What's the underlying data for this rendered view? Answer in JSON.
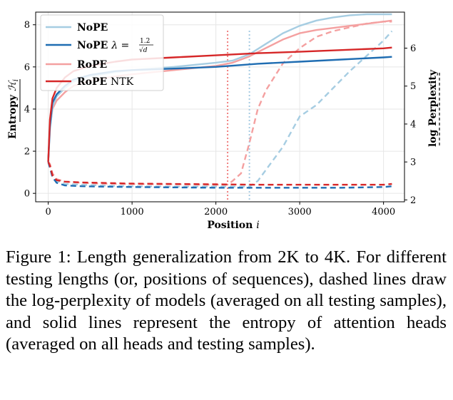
{
  "chart_data": {
    "type": "line",
    "xlabel": "Position i",
    "ylabel_left": "Entropy H_i",
    "ylabel_right": "log Perplexity",
    "xlim": [
      -150,
      4250
    ],
    "ylim_left": [
      -0.4,
      8.6
    ],
    "ylim_right": [
      1.95,
      6.95
    ],
    "x_ticks": [
      0,
      1000,
      2000,
      3000,
      4000
    ],
    "y_left_ticks": [
      0,
      2,
      4,
      6,
      8
    ],
    "y_right_ticks": [
      2,
      3,
      4,
      5,
      6
    ],
    "grid": true,
    "legend_position": "top-left",
    "legend": [
      {
        "name": "NoPE",
        "sub": ""
      },
      {
        "name": "NoPE",
        "sub": "λ = 1.2/√d"
      },
      {
        "name": "RoPE",
        "sub": ""
      },
      {
        "name": "RoPE",
        "sub": "NTK"
      }
    ],
    "vlines": [
      {
        "x": 2140,
        "color": "#f08080"
      },
      {
        "x": 2400,
        "color": "#a6cbe3"
      }
    ],
    "series": [
      {
        "name": "NoPE",
        "style": "solid",
        "axis": "left",
        "color": "#a6cde2",
        "x": [
          0,
          20,
          50,
          100,
          200,
          300,
          500,
          800,
          1000,
          1500,
          2000,
          2200,
          2400,
          2600,
          2800,
          3000,
          3200,
          3400,
          3600,
          3800,
          4000,
          4100
        ],
        "y": [
          1.5,
          3.0,
          4.1,
          4.6,
          5.0,
          5.3,
          5.55,
          5.75,
          5.85,
          6.0,
          6.2,
          6.3,
          6.6,
          7.1,
          7.6,
          7.95,
          8.2,
          8.35,
          8.45,
          8.5,
          8.5,
          8.5
        ]
      },
      {
        "name": "NoPE λ = 1.2/√d",
        "style": "solid",
        "axis": "left",
        "color": "#1f6db2",
        "x": [
          0,
          20,
          50,
          100,
          200,
          300,
          500,
          800,
          1000,
          1500,
          2000,
          2500,
          3000,
          3500,
          4000,
          4100
        ],
        "y": [
          1.5,
          3.2,
          4.3,
          4.7,
          5.1,
          5.4,
          5.62,
          5.8,
          5.85,
          5.92,
          6.0,
          6.15,
          6.25,
          6.35,
          6.45,
          6.48
        ]
      },
      {
        "name": "RoPE",
        "style": "solid",
        "axis": "left",
        "color": "#f4a0a0",
        "x": [
          0,
          20,
          50,
          100,
          200,
          300,
          500,
          800,
          1000,
          1500,
          2000,
          2200,
          2400,
          2600,
          2800,
          3000,
          3200,
          3400,
          3600,
          3800,
          4000,
          4100
        ],
        "y": [
          1.5,
          3.1,
          4.0,
          4.4,
          4.8,
          5.1,
          5.35,
          5.55,
          5.65,
          5.85,
          6.05,
          6.2,
          6.5,
          6.9,
          7.3,
          7.6,
          7.75,
          7.85,
          7.95,
          8.05,
          8.15,
          8.2
        ]
      },
      {
        "name": "RoPE NTK",
        "style": "solid",
        "axis": "left",
        "color": "#d62728",
        "x": [
          0,
          20,
          50,
          100,
          200,
          300,
          500,
          800,
          1000,
          1500,
          2000,
          2500,
          3000,
          3500,
          4000,
          4100
        ],
        "y": [
          1.5,
          3.5,
          4.5,
          5.0,
          5.5,
          5.8,
          6.05,
          6.25,
          6.35,
          6.45,
          6.55,
          6.65,
          6.72,
          6.8,
          6.88,
          6.92
        ]
      },
      {
        "name": "NoPE",
        "style": "dashed",
        "axis": "right",
        "color": "#a6cde2",
        "x": [
          0,
          20,
          50,
          100,
          200,
          400,
          600,
          1000,
          1500,
          2000,
          2400,
          2500,
          2600,
          2800,
          3000,
          3200,
          3400,
          3600,
          3800,
          4000,
          4100
        ],
        "y": [
          3.0,
          2.9,
          2.65,
          2.5,
          2.42,
          2.4,
          2.38,
          2.36,
          2.35,
          2.35,
          2.35,
          2.5,
          2.8,
          3.4,
          4.2,
          4.5,
          4.95,
          5.4,
          5.8,
          6.2,
          6.45
        ]
      },
      {
        "name": "NoPE λ = 1.2/√d",
        "style": "dashed",
        "axis": "right",
        "color": "#1f6db2",
        "x": [
          0,
          20,
          50,
          100,
          200,
          400,
          600,
          1000,
          1500,
          2000,
          2500,
          3000,
          3500,
          4000,
          4100
        ],
        "y": [
          3.0,
          2.85,
          2.6,
          2.45,
          2.38,
          2.36,
          2.35,
          2.34,
          2.33,
          2.32,
          2.32,
          2.32,
          2.32,
          2.34,
          2.36
        ]
      },
      {
        "name": "RoPE",
        "style": "dashed",
        "axis": "right",
        "color": "#f4a0a0",
        "x": [
          0,
          20,
          50,
          100,
          200,
          400,
          600,
          1000,
          1500,
          2000,
          2140,
          2200,
          2300,
          2400,
          2500,
          2600,
          2800,
          3000,
          3200,
          3400,
          3600,
          3800,
          4000,
          4100
        ],
        "y": [
          3.0,
          2.95,
          2.7,
          2.55,
          2.48,
          2.45,
          2.43,
          2.42,
          2.41,
          2.4,
          2.4,
          2.5,
          2.7,
          3.5,
          4.4,
          4.9,
          5.6,
          6.0,
          6.3,
          6.45,
          6.55,
          6.65,
          6.7,
          6.7
        ]
      },
      {
        "name": "RoPE NTK",
        "style": "dashed",
        "axis": "right",
        "color": "#d62728",
        "x": [
          0,
          20,
          50,
          100,
          200,
          400,
          600,
          1000,
          1500,
          2000,
          2500,
          3000,
          3500,
          4000,
          4100
        ],
        "y": [
          3.0,
          2.9,
          2.65,
          2.52,
          2.48,
          2.46,
          2.45,
          2.43,
          2.42,
          2.41,
          2.4,
          2.4,
          2.4,
          2.4,
          2.42
        ]
      }
    ]
  },
  "caption": "Figure 1: Length generalization from 2K to 4K. For different testing lengths (or, positions of sequences), dashed lines draw the log-perplexity of models (averaged on all testing samples), and solid lines represent the entropy of attention heads (averaged on all heads and testing samples)."
}
